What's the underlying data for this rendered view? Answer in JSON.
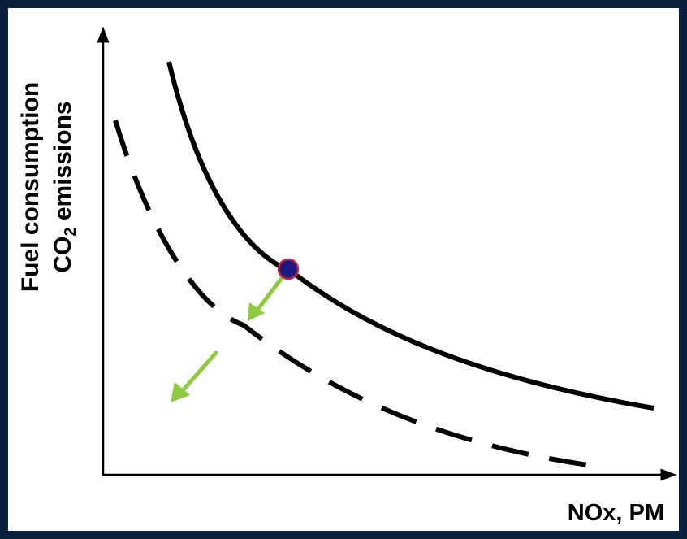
{
  "axes": {
    "y_label_line1": "Fuel consumption",
    "y_label_line2_main": "CO",
    "y_label_line2_sub": "2",
    "y_label_line2_rest": " emissions",
    "x_label": "NOx, PM"
  },
  "colors": {
    "background": "#0c1f3d",
    "canvas": "#ffffff",
    "curve": "#000000",
    "arrow": "#8ccc3e",
    "point_fill": "#1a1a80",
    "point_stroke": "#cc2244"
  },
  "diagram": {
    "curves": [
      "current trade-off curve (solid)",
      "improved trade-off curve (dashed)"
    ],
    "arrows": [
      "improvement-arrow-1",
      "improvement-arrow-2"
    ]
  }
}
